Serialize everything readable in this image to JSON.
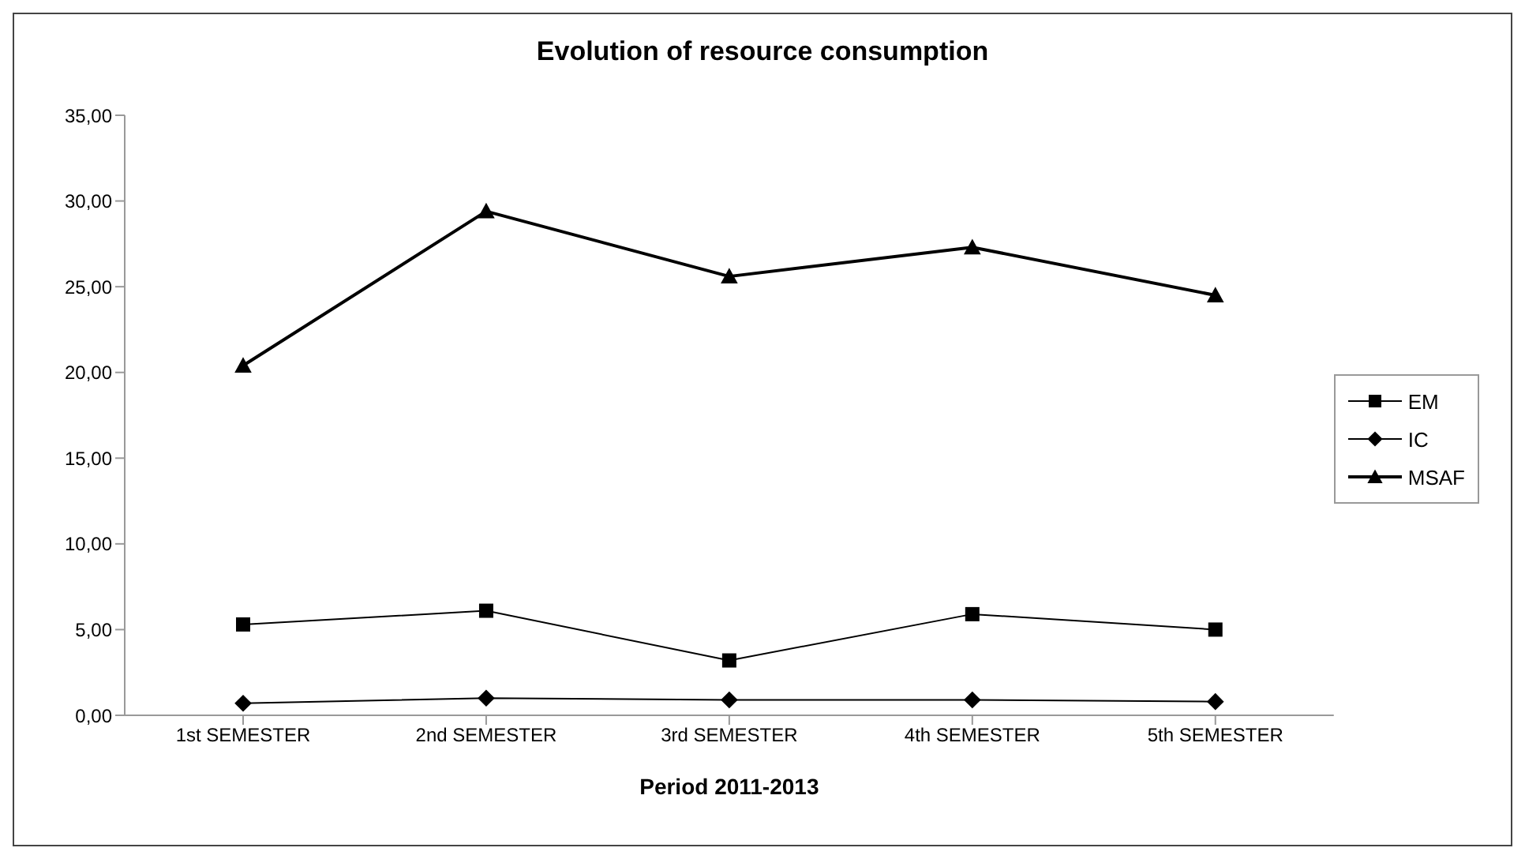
{
  "chart_data": {
    "type": "line",
    "title": "Evolution of resource consumption",
    "xlabel": "Period 2011-2013",
    "categories": [
      "1st SEMESTER",
      "2nd SEMESTER",
      "3rd SEMESTER",
      "4th SEMESTER",
      "5th SEMESTER"
    ],
    "series": [
      {
        "name": "EM",
        "color": "#000000",
        "marker": "square",
        "values": [
          5.3,
          6.1,
          3.2,
          5.9,
          5.0
        ]
      },
      {
        "name": "IC",
        "color": "#000000",
        "marker": "diamond",
        "values": [
          0.7,
          1.0,
          0.9,
          0.9,
          0.8
        ]
      },
      {
        "name": "MSAF",
        "color": "#000000",
        "marker": "triangle",
        "values": [
          20.4,
          29.4,
          25.6,
          27.3,
          24.5
        ]
      }
    ],
    "ylim": [
      0,
      35
    ],
    "yticks": [
      {
        "value": 0,
        "label": "0,00"
      },
      {
        "value": 5,
        "label": "5,00"
      },
      {
        "value": 10,
        "label": "10,00"
      },
      {
        "value": 15,
        "label": "15,00"
      },
      {
        "value": 20,
        "label": "20,00"
      },
      {
        "value": 25,
        "label": "25,00"
      },
      {
        "value": 30,
        "label": "30,00"
      },
      {
        "value": 35,
        "label": "35,00"
      }
    ],
    "grid": false,
    "legend": "right",
    "line_style": "solid"
  }
}
